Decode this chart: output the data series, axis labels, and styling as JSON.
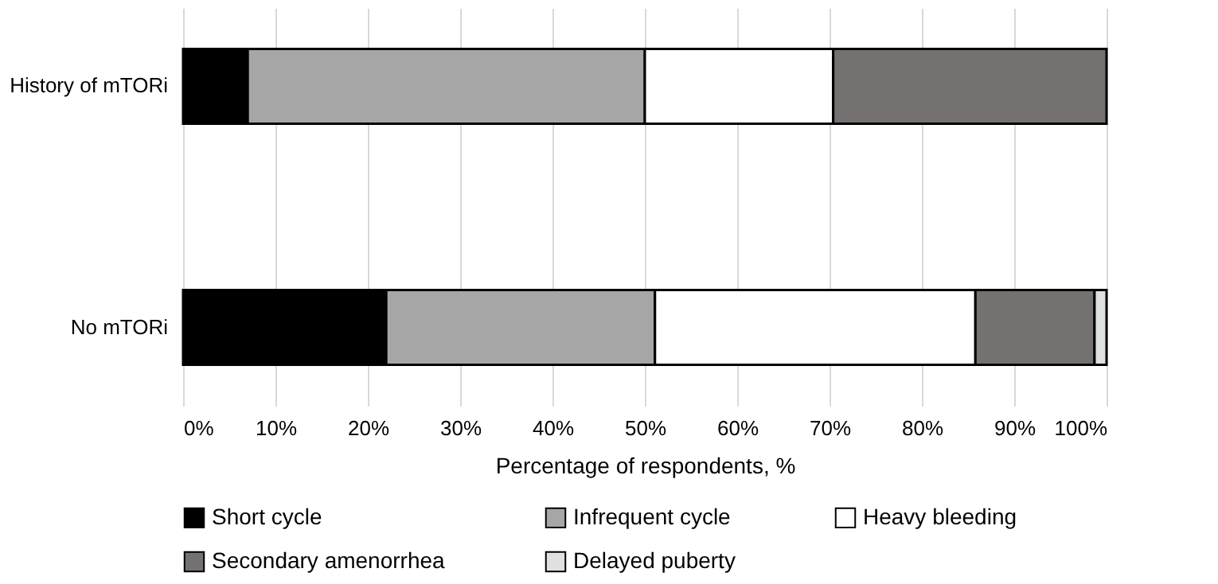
{
  "chart_data": {
    "type": "bar",
    "orientation": "horizontal",
    "stacked": true,
    "xlabel": "Percentage of respondents, %",
    "categories": [
      "History of mTORi",
      "No mTORi"
    ],
    "series": [
      {
        "name": "Short cycle",
        "color": "#000000",
        "values": [
          7,
          22
        ]
      },
      {
        "name": "Infrequent cycle",
        "color": "#a6a6a6",
        "values": [
          43,
          29.1
        ]
      },
      {
        "name": "Heavy bleeding",
        "color": "#ffffff",
        "values": [
          20.4,
          34.7
        ]
      },
      {
        "name": "Secondary amenorrhea",
        "color": "#767171",
        "values": [
          29.6,
          12.9
        ]
      },
      {
        "name": "Delayed puberty",
        "color": "#e0e0e0",
        "values": [
          null,
          1.3
        ]
      }
    ],
    "xlim": [
      0,
      100
    ],
    "xticks": [
      {
        "value": 0,
        "label": "0%"
      },
      {
        "value": 10,
        "label": "10%"
      },
      {
        "value": 20,
        "label": "20%"
      },
      {
        "value": 30,
        "label": "30%"
      },
      {
        "value": 40,
        "label": "40%"
      },
      {
        "value": 50,
        "label": "50%"
      },
      {
        "value": 60,
        "label": "60%"
      },
      {
        "value": 70,
        "label": "70%"
      },
      {
        "value": 80,
        "label": "80%"
      },
      {
        "value": 90,
        "label": "90%"
      },
      {
        "value": 100,
        "label": "100%"
      }
    ],
    "grid": "x",
    "legend": "bottom"
  }
}
